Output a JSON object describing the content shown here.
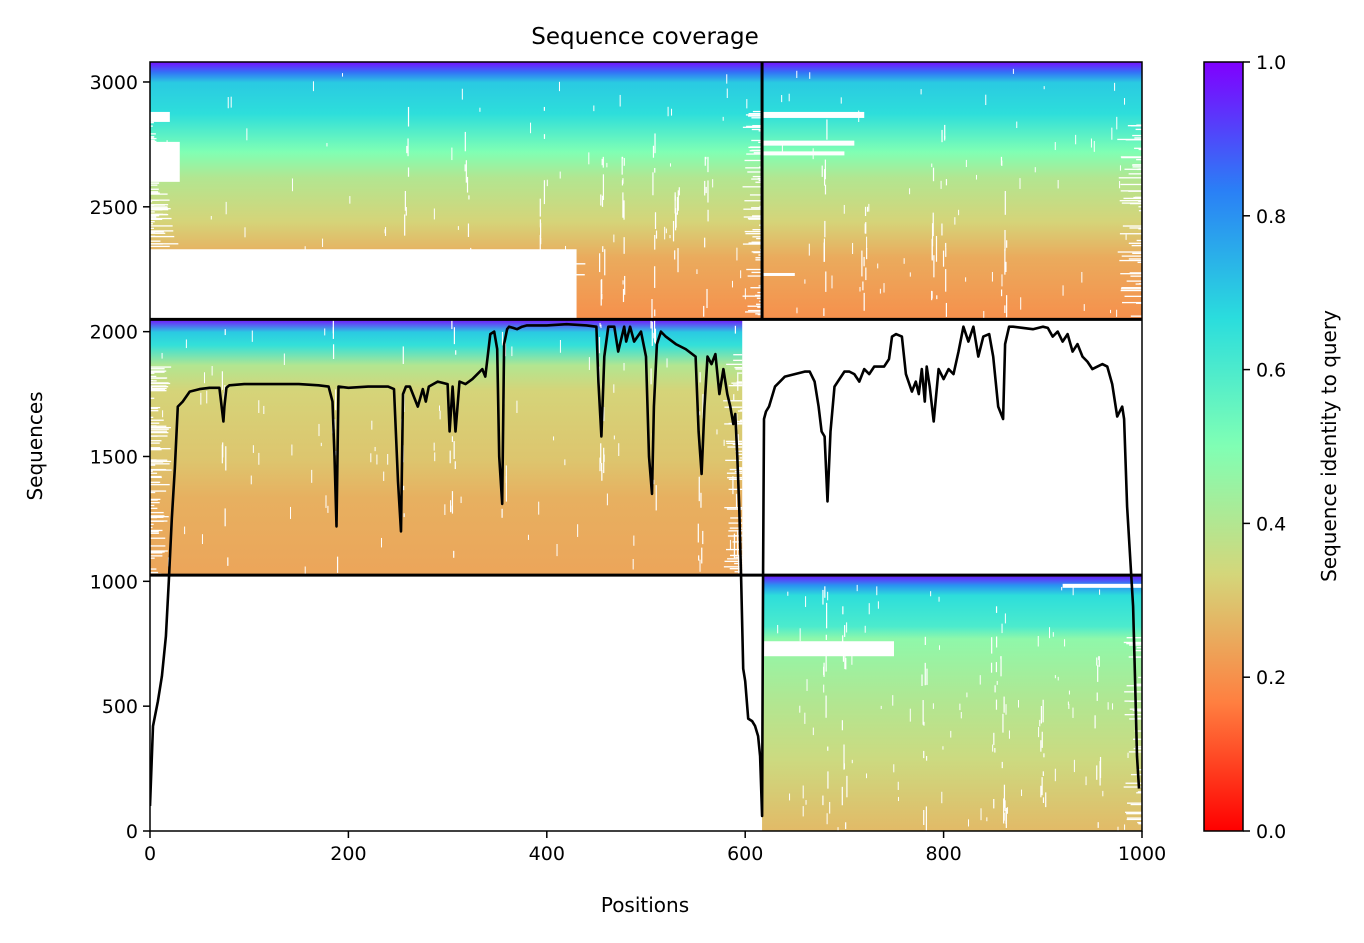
{
  "chart_data": {
    "type": "heatmap",
    "title": "Sequence coverage",
    "xlabel": "Positions",
    "ylabel": "Sequences",
    "xlim": [
      0,
      1000
    ],
    "ylim": [
      0,
      3080
    ],
    "xticks": [
      0,
      200,
      400,
      600,
      800,
      1000
    ],
    "yticks": [
      0,
      500,
      1000,
      1500,
      2000,
      2500,
      3000
    ],
    "colorbar": {
      "label": "Sequence identity to query",
      "range": [
        0.0,
        1.0
      ],
      "ticks": [
        "0.0",
        "0.2",
        "0.4",
        "0.6",
        "0.8",
        "1.0"
      ],
      "colormap": "rainbow_r",
      "stops": [
        "#ff0000",
        "#ff7f40",
        "#d4d67a",
        "#80ffb4",
        "#2adddd",
        "#2a7ff6",
        "#8000ff"
      ]
    },
    "segment_boundary_x": 617,
    "blocks": [
      {
        "x": [
          0,
          617
        ],
        "y": [
          2049,
          3080
        ],
        "identity_top": 0.98,
        "identity_bottom": 0.2,
        "bands": [
          [
            0.0,
            0.98
          ],
          [
            0.04,
            0.85
          ],
          [
            0.08,
            0.7
          ],
          [
            0.2,
            0.66
          ],
          [
            0.35,
            0.5
          ],
          [
            0.45,
            0.4
          ],
          [
            0.62,
            0.33
          ],
          [
            0.76,
            0.25
          ],
          [
            1.0,
            0.2
          ]
        ]
      },
      {
        "x": [
          617,
          1000
        ],
        "y": [
          2049,
          3080
        ],
        "identity_top": 0.98,
        "identity_bottom": 0.2,
        "bands": [
          [
            0.0,
            0.98
          ],
          [
            0.04,
            0.85
          ],
          [
            0.08,
            0.7
          ],
          [
            0.2,
            0.66
          ],
          [
            0.35,
            0.5
          ],
          [
            0.45,
            0.4
          ],
          [
            0.62,
            0.33
          ],
          [
            0.76,
            0.25
          ],
          [
            1.0,
            0.2
          ]
        ]
      },
      {
        "x": [
          0,
          597
        ],
        "y": [
          1025,
          2049
        ],
        "identity_top": 0.98,
        "identity_bottom": 0.24,
        "bands": [
          [
            0.0,
            0.98
          ],
          [
            0.05,
            0.7
          ],
          [
            0.1,
            0.65
          ],
          [
            0.18,
            0.4
          ],
          [
            0.28,
            0.33
          ],
          [
            0.55,
            0.3
          ],
          [
            0.7,
            0.26
          ],
          [
            1.0,
            0.24
          ]
        ]
      },
      {
        "x": [
          617,
          1000
        ],
        "y": [
          0,
          1025
        ],
        "identity_top": 0.98,
        "identity_bottom": 0.28,
        "bands": [
          [
            0.0,
            0.98
          ],
          [
            0.04,
            0.8
          ],
          [
            0.08,
            0.66
          ],
          [
            0.2,
            0.6
          ],
          [
            0.25,
            0.47
          ],
          [
            0.5,
            0.4
          ],
          [
            0.72,
            0.35
          ],
          [
            1.0,
            0.28
          ]
        ]
      }
    ],
    "block_dividers_y": [
      1025,
      2049
    ],
    "coverage_line": {
      "x": [
        0,
        3,
        8,
        12,
        16,
        19,
        22,
        25,
        28,
        33,
        40,
        50,
        60,
        70,
        74,
        75,
        77,
        80,
        95,
        110,
        130,
        150,
        170,
        180,
        184,
        186,
        188,
        190,
        200,
        220,
        240,
        246,
        250,
        253,
        255,
        258,
        262,
        270,
        275,
        278,
        281,
        290,
        300,
        302,
        305,
        308,
        312,
        318,
        325,
        330,
        335,
        338,
        343,
        347,
        350,
        352,
        355,
        357,
        360,
        362,
        366,
        370,
        375,
        380,
        400,
        420,
        440,
        450,
        452,
        455,
        458,
        462,
        468,
        472,
        478,
        480,
        484,
        488,
        495,
        500,
        503,
        506,
        508,
        511,
        515,
        520,
        530,
        540,
        550,
        553,
        556,
        559,
        562,
        566,
        570,
        574,
        578,
        582,
        585,
        588,
        590,
        592,
        594,
        596,
        598,
        600,
        603,
        607,
        610,
        613,
        615,
        617,
        618,
        619,
        621,
        624,
        630,
        640,
        650,
        660,
        665,
        670,
        674,
        677,
        680,
        683,
        686,
        690,
        700,
        705,
        710,
        715,
        720,
        725,
        730,
        740,
        745,
        748,
        752,
        758,
        762,
        768,
        772,
        775,
        778,
        781,
        783,
        786,
        790,
        795,
        800,
        805,
        810,
        815,
        820,
        825,
        830,
        835,
        840,
        846,
        850,
        855,
        860,
        862,
        866,
        870,
        880,
        890,
        900,
        905,
        910,
        915,
        920,
        925,
        930,
        935,
        940,
        945,
        950,
        955,
        960,
        965,
        970,
        975,
        980,
        982,
        985,
        988,
        991,
        993,
        995,
        997,
        999
      ],
      "y": [
        100,
        420,
        520,
        620,
        780,
        1000,
        1250,
        1450,
        1700,
        1720,
        1760,
        1770,
        1775,
        1775,
        1640,
        1700,
        1775,
        1785,
        1790,
        1790,
        1790,
        1790,
        1785,
        1780,
        1720,
        1500,
        1220,
        1780,
        1775,
        1780,
        1780,
        1770,
        1400,
        1200,
        1750,
        1780,
        1780,
        1700,
        1770,
        1720,
        1780,
        1800,
        1790,
        1600,
        1780,
        1600,
        1800,
        1790,
        1810,
        1830,
        1850,
        1820,
        1990,
        2000,
        1930,
        1500,
        1310,
        1950,
        2010,
        2020,
        2015,
        2010,
        2020,
        2025,
        2025,
        2030,
        2025,
        2020,
        1800,
        1580,
        1900,
        2020,
        2020,
        1920,
        2020,
        1960,
        2020,
        1960,
        2000,
        1900,
        1500,
        1350,
        1700,
        1950,
        2000,
        1980,
        1950,
        1930,
        1900,
        1600,
        1430,
        1700,
        1900,
        1870,
        1910,
        1750,
        1850,
        1750,
        1700,
        1630,
        1670,
        1500,
        1300,
        1000,
        650,
        600,
        450,
        440,
        420,
        380,
        300,
        60,
        1050,
        1650,
        1680,
        1700,
        1780,
        1820,
        1830,
        1840,
        1840,
        1800,
        1700,
        1600,
        1580,
        1320,
        1600,
        1780,
        1840,
        1840,
        1830,
        1800,
        1850,
        1830,
        1860,
        1860,
        1890,
        1980,
        1990,
        1980,
        1830,
        1760,
        1800,
        1750,
        1850,
        1720,
        1860,
        1780,
        1640,
        1850,
        1810,
        1850,
        1830,
        1920,
        2020,
        1960,
        2020,
        1900,
        1980,
        1990,
        1900,
        1700,
        1650,
        1950,
        2020,
        2020,
        2015,
        2010,
        2020,
        2015,
        1980,
        2000,
        1960,
        1990,
        1920,
        1950,
        1900,
        1880,
        1850,
        1860,
        1870,
        1860,
        1790,
        1660,
        1700,
        1650,
        1300,
        1100,
        900,
        600,
        300,
        170
      ]
    }
  }
}
